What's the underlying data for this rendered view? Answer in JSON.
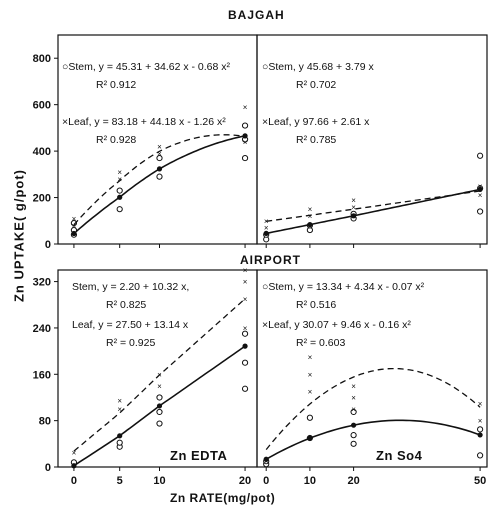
{
  "figure": {
    "ylabel": "Zn UPTAKE( g/pot)",
    "xlabel": "Zn RATE(mg/pot)",
    "top_title": "BAJGAH",
    "bottom_title": "AIRPORT"
  },
  "chart_data": [
    {
      "type": "scatter",
      "location": "BAJGAH",
      "treatment": "Zn EDTA",
      "x_ticks": [
        0,
        5,
        10,
        20
      ],
      "y_ticks": [
        0,
        200,
        400,
        600,
        800
      ],
      "ylim": [
        0,
        900
      ],
      "annotations": [
        {
          "symbol": "○",
          "text": "Stem, y = 45.31 + 34.62 x - 0.68 x²"
        },
        {
          "symbol": "",
          "text": "R² 0.912"
        },
        {
          "symbol": "×",
          "text": "Leaf, y = 83.18 + 44.18 x - 1.26 x²"
        },
        {
          "symbol": "",
          "text": "R² 0.928"
        }
      ],
      "series": [
        {
          "name": "Stem",
          "style": "solid",
          "marker": "o",
          "fit": {
            "kind": "poly",
            "c": [
              45.31,
              34.62,
              -0.68
            ]
          },
          "x": [
            0,
            0,
            0,
            5,
            5,
            10,
            10,
            20,
            20,
            20
          ],
          "y": [
            40,
            60,
            90,
            150,
            230,
            290,
            370,
            370,
            450,
            510
          ]
        },
        {
          "name": "Leaf",
          "style": "dashed",
          "marker": "x",
          "fit": {
            "kind": "poly",
            "c": [
              83.18,
              44.18,
              -1.26
            ]
          },
          "x": [
            0,
            0,
            5,
            5,
            10,
            10,
            20,
            20
          ],
          "y": [
            80,
            110,
            280,
            310,
            390,
            420,
            440,
            590
          ]
        }
      ]
    },
    {
      "type": "scatter",
      "location": "BAJGAH",
      "treatment": "Zn SO4",
      "x_ticks": [
        0,
        10,
        20,
        50
      ],
      "y_ticks": [
        0,
        200,
        400,
        600,
        800
      ],
      "ylim": [
        0,
        900
      ],
      "annotations": [
        {
          "symbol": "○",
          "text": "Stem, y   45.68 + 3.79 x"
        },
        {
          "symbol": "",
          "text": "R²  0.702"
        },
        {
          "symbol": "×",
          "text": "Leaf, y   97.66 + 2.61 x"
        },
        {
          "symbol": "",
          "text": "R²  0.785"
        }
      ],
      "series": [
        {
          "name": "Stem",
          "style": "solid",
          "marker": "o",
          "fit": {
            "kind": "poly",
            "c": [
              45.68,
              3.79,
              0
            ]
          },
          "x": [
            0,
            0,
            10,
            10,
            20,
            20,
            50,
            50,
            50
          ],
          "y": [
            20,
            40,
            60,
            80,
            110,
            130,
            140,
            240,
            380
          ]
        },
        {
          "name": "Leaf",
          "style": "dashed",
          "marker": "x",
          "fit": {
            "kind": "poly",
            "c": [
              97.66,
              2.61,
              0
            ]
          },
          "x": [
            0,
            0,
            10,
            10,
            20,
            20,
            50,
            50
          ],
          "y": [
            70,
            100,
            120,
            150,
            160,
            190,
            210,
            250
          ]
        }
      ]
    },
    {
      "type": "scatter",
      "location": "AIRPORT",
      "treatment": "Zn EDTA",
      "x_ticks": [
        0,
        5,
        10,
        20
      ],
      "y_ticks": [
        0,
        80,
        160,
        240,
        320
      ],
      "ylim": [
        0,
        340
      ],
      "annotations": [
        {
          "symbol": "",
          "text": "Stem, y = 2.20 + 10.32 x,"
        },
        {
          "symbol": "",
          "text": "R² 0.825"
        },
        {
          "symbol": "",
          "text": "Leaf, y = 27.50 + 13.14 x"
        },
        {
          "symbol": "",
          "text": "R² = 0.925"
        }
      ],
      "series": [
        {
          "name": "Stem",
          "style": "solid",
          "marker": "o",
          "fit": {
            "kind": "poly",
            "c": [
              2.2,
              10.32,
              0
            ]
          },
          "x": [
            0,
            5,
            5,
            10,
            10,
            10,
            20,
            20,
            20
          ],
          "y": [
            8,
            35,
            42,
            75,
            95,
            120,
            135,
            180,
            230
          ]
        },
        {
          "name": "Leaf",
          "style": "dashed",
          "marker": "x",
          "fit": {
            "kind": "poly",
            "c": [
              27.5,
              13.14,
              0
            ]
          },
          "x": [
            0,
            5,
            5,
            10,
            10,
            20,
            20,
            20,
            20
          ],
          "y": [
            25,
            100,
            115,
            140,
            160,
            240,
            290,
            320,
            340
          ]
        }
      ]
    },
    {
      "type": "scatter",
      "location": "AIRPORT",
      "treatment": "Zn So4",
      "x_ticks": [
        0,
        10,
        20,
        50
      ],
      "y_ticks": [
        0,
        80,
        160,
        240,
        320
      ],
      "ylim": [
        0,
        340
      ],
      "annotations": [
        {
          "symbol": "○",
          "text": "Stem, y = 13.34 + 4.34 x - 0.07 x²"
        },
        {
          "symbol": "",
          "text": "R²  0.516"
        },
        {
          "symbol": "×",
          "text": "Leaf, y   30.07 + 9.46 x - 0.16 x²"
        },
        {
          "symbol": "",
          "text": "R² = 0.603"
        }
      ],
      "series": [
        {
          "name": "Stem",
          "style": "solid",
          "marker": "o",
          "fit": {
            "kind": "poly",
            "c": [
              13.34,
              4.34,
              -0.07
            ]
          },
          "x": [
            0,
            0,
            10,
            10,
            20,
            20,
            20,
            50,
            50
          ],
          "y": [
            5,
            10,
            50,
            85,
            40,
            55,
            95,
            20,
            65
          ]
        },
        {
          "name": "Leaf",
          "style": "dashed",
          "marker": "x",
          "fit": {
            "kind": "poly",
            "c": [
              30.07,
              9.46,
              -0.16
            ]
          },
          "x": [
            0,
            10,
            10,
            10,
            20,
            20,
            20,
            50,
            50
          ],
          "y": [
            10,
            130,
            160,
            190,
            100,
            120,
            140,
            80,
            110
          ]
        }
      ]
    }
  ]
}
